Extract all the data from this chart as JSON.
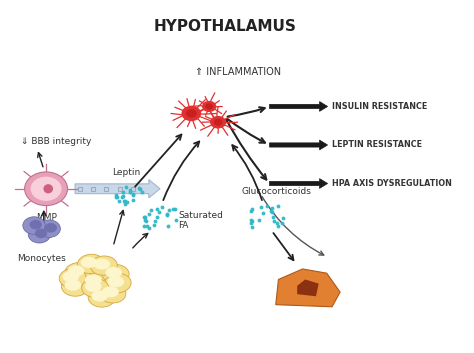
{
  "title": "HYPOTHALAMUS",
  "title_fontsize": 11,
  "title_fontweight": "bold",
  "bg_color": "#ffffff",
  "labels": {
    "inflammation": "⇑ INFLAMMATION",
    "insulin": "INSULIN RESISTANCE",
    "leptin_res": "LEPTIN RESISTANCE",
    "hpa": "HPA AXIS DYSREGULATION",
    "bbb": "⇓ BBB integrity",
    "mmp": "MMP",
    "monocytes": "Monocytes",
    "leptin": "Leptin",
    "sat_fa": "Saturated\nFA",
    "gluco": "Glucocorticoids"
  },
  "microglia_color": "#e03030",
  "microglia_body_color": "#c82020",
  "fat_color": "#f5e090",
  "fat_edge": "#d4a840",
  "fat_inner": "#fdf5cc",
  "adrenal_color": "#e08030",
  "adrenal_edge": "#b05818",
  "adrenal_dark": "#8b3010",
  "monocyte_color": "#e8a0b8",
  "monocyte_edge": "#c07090",
  "monocyte_nucleus": "#cc6080",
  "mono_small_color": "#9090c8",
  "mono_small_edge": "#6060a0",
  "dot_color": "#30b8c8",
  "big_arrow_fill": "#c8d8e8",
  "big_arrow_edge": "#a0b8cc",
  "dot_dashed_color": "#8898b0",
  "arrow_color": "#222222",
  "text_color": "#333333",
  "outcome_arrow_color": "#1a1a1a"
}
